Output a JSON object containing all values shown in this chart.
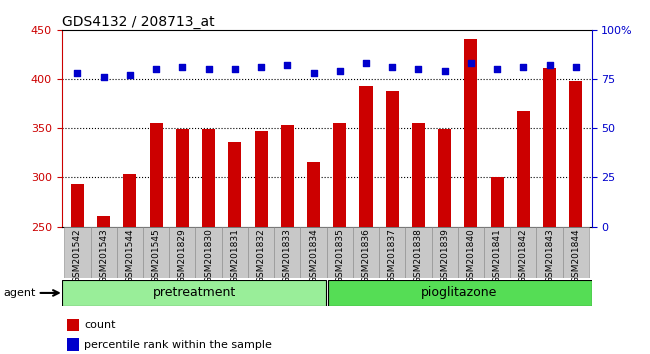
{
  "title": "GDS4132 / 208713_at",
  "categories": [
    "GSM201542",
    "GSM201543",
    "GSM201544",
    "GSM201545",
    "GSM201829",
    "GSM201830",
    "GSM201831",
    "GSM201832",
    "GSM201833",
    "GSM201834",
    "GSM201835",
    "GSM201836",
    "GSM201837",
    "GSM201838",
    "GSM201839",
    "GSM201840",
    "GSM201841",
    "GSM201842",
    "GSM201843",
    "GSM201844"
  ],
  "count_values": [
    293,
    261,
    303,
    355,
    349,
    349,
    336,
    347,
    353,
    316,
    355,
    393,
    388,
    355,
    349,
    441,
    300,
    368,
    411,
    398
  ],
  "percentile_values": [
    78,
    76,
    77,
    80,
    81,
    80,
    80,
    81,
    82,
    78,
    79,
    83,
    81,
    80,
    79,
    83,
    80,
    81,
    82,
    81
  ],
  "bar_color": "#cc0000",
  "dot_color": "#0000cc",
  "ylim_left": [
    250,
    450
  ],
  "ylim_right": [
    0,
    100
  ],
  "yticks_left": [
    250,
    300,
    350,
    400,
    450
  ],
  "yticks_right": [
    0,
    25,
    50,
    75,
    100
  ],
  "ytick_labels_right": [
    "0",
    "25",
    "50",
    "75",
    "100%"
  ],
  "grid_ticks": [
    300,
    350,
    400
  ],
  "pretreatment_count": 10,
  "pioglitazone_count": 10,
  "pretreatment_label": "pretreatment",
  "pioglitazone_label": "pioglitazone",
  "agent_label": "agent",
  "legend_count": "count",
  "legend_percentile": "percentile rank within the sample",
  "pretreatment_color": "#99ee99",
  "pioglitazone_color": "#55dd55",
  "tick_area_color": "#c8c8c8",
  "background_color": "#ffffff",
  "bar_width": 0.5
}
